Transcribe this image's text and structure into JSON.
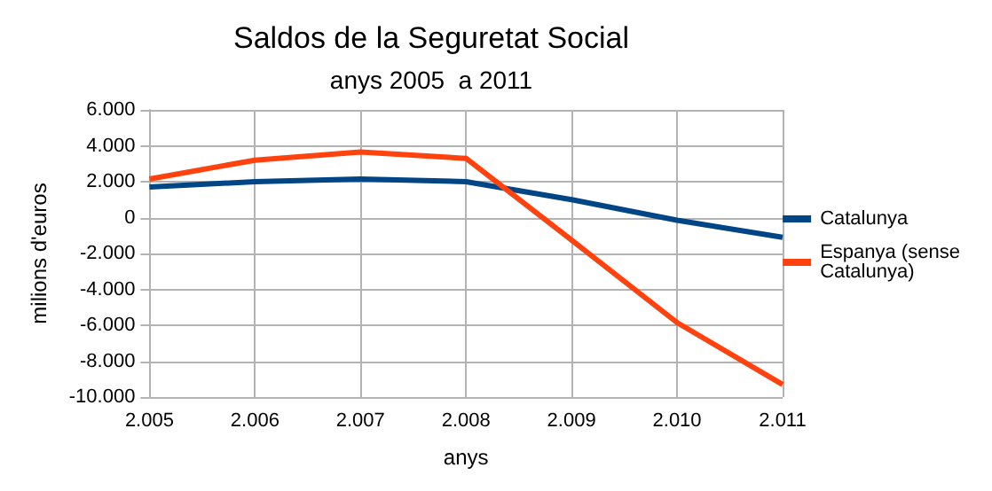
{
  "chart_data": {
    "type": "line",
    "title": "Saldos de la Seguretat Social",
    "subtitle": "anys 2005  a 2011",
    "xlabel": "anys",
    "ylabel": "milions d'euros",
    "categories": [
      "2.005",
      "2.006",
      "2.007",
      "2.008",
      "2.009",
      "2.010",
      "2.011"
    ],
    "series": [
      {
        "name": "Catalunya",
        "color": "#004586",
        "values": [
          1700,
          2000,
          2150,
          2000,
          1000,
          -150,
          -1100
        ]
      },
      {
        "name": "Espanya (sense Catalunya)",
        "color": "#ff420e",
        "values": [
          2150,
          3200,
          3650,
          3300,
          -1250,
          -5850,
          -9300
        ]
      }
    ],
    "ylim": [
      -10000,
      6000
    ],
    "yticks": [
      {
        "value": -10000,
        "label": "-10.000"
      },
      {
        "value": -8000,
        "label": "-8.000"
      },
      {
        "value": -6000,
        "label": "-6.000"
      },
      {
        "value": -4000,
        "label": "-4.000"
      },
      {
        "value": -2000,
        "label": "-2.000"
      },
      {
        "value": 0,
        "label": "0"
      },
      {
        "value": 2000,
        "label": "2.000"
      },
      {
        "value": 4000,
        "label": "4.000"
      },
      {
        "value": 6000,
        "label": "6.000"
      }
    ],
    "grid": true,
    "legend": "right",
    "marker": "none",
    "line_style": "solid"
  }
}
